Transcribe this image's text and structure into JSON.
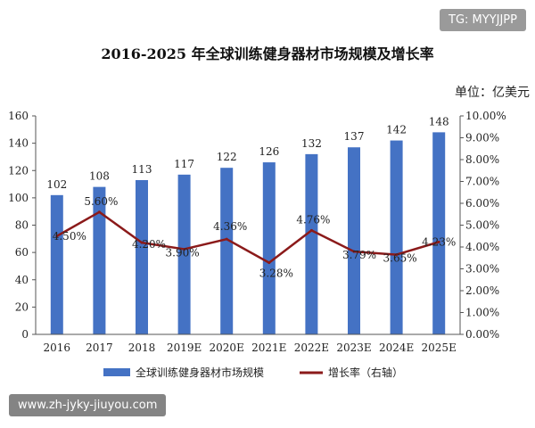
{
  "watermarks": {
    "top": "TG: MYYJJPP",
    "bottom": "www.zh-jyky-jiuyou.com"
  },
  "chart_data": {
    "type": "bar",
    "title": "2016-2025 年全球训练健身器材市场规模及增长率",
    "unit_label": "单位：亿美元",
    "categories": [
      "2016",
      "2017",
      "2018",
      "2019E",
      "2020E",
      "2021E",
      "2022E",
      "2023E",
      "2024E",
      "2025E"
    ],
    "series": [
      {
        "name": "全球训练健身器材市场规模",
        "type": "bar",
        "axis": "left",
        "values": [
          102,
          108,
          113,
          117,
          122,
          126,
          132,
          137,
          142,
          148
        ],
        "labels": [
          "102",
          "108",
          "113",
          "117",
          "122",
          "126",
          "132",
          "137",
          "142",
          "148"
        ],
        "color": "#4472C4"
      },
      {
        "name": "增长率（右轴）",
        "type": "line",
        "axis": "right",
        "values": [
          4.5,
          5.6,
          4.2,
          3.9,
          4.36,
          3.28,
          4.76,
          3.79,
          3.65,
          4.23
        ],
        "labels": [
          "4.50%",
          "5.60%",
          "4.20%",
          "3.90%",
          "4.36%",
          "3.28%",
          "4.76%",
          "3.79%",
          "3.65%",
          "4.23%"
        ],
        "color": "#8B1A1A"
      }
    ],
    "y_left": {
      "range": [
        0,
        160
      ],
      "ticks": [
        0,
        20,
        40,
        60,
        80,
        100,
        120,
        140,
        160
      ],
      "tick_labels": [
        "0",
        "20",
        "40",
        "60",
        "80",
        "100",
        "120",
        "140",
        "160"
      ]
    },
    "y_right": {
      "range": [
        0,
        10
      ],
      "ticks": [
        0,
        1,
        2,
        3,
        4,
        5,
        6,
        7,
        8,
        9,
        10
      ],
      "tick_labels": [
        "0.00%",
        "1.00%",
        "2.00%",
        "3.00%",
        "4.00%",
        "5.00%",
        "6.00%",
        "7.00%",
        "8.00%",
        "9.00%",
        "10.00%"
      ]
    },
    "legend": {
      "position": "bottom",
      "items": [
        "全球训练健身器材市场规模",
        "增长率（右轴）"
      ]
    }
  }
}
